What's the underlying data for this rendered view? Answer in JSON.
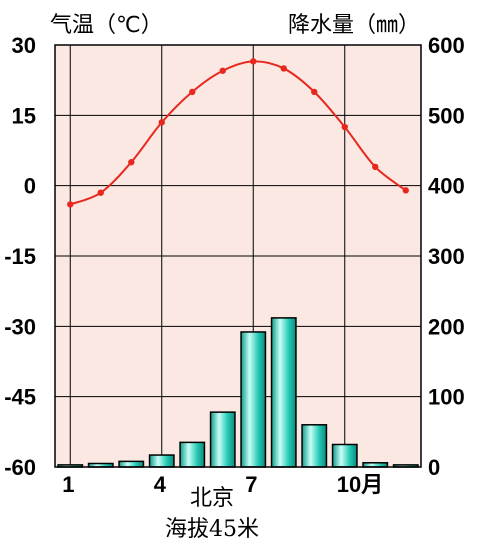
{
  "chart_data": {
    "type": "climate",
    "temp_axis_label": "气温（℃）",
    "precip_axis_label": "降水量（㎜）",
    "temp_ylim": [
      -60,
      30
    ],
    "precip_ylim": [
      0,
      600
    ],
    "temp_ticks": [
      "30",
      "15",
      "0",
      "-15",
      "-30",
      "-45",
      "-60"
    ],
    "precip_ticks": [
      "600",
      "500",
      "400",
      "300",
      "200",
      "100",
      "0"
    ],
    "month_ticks": [
      {
        "month": 1,
        "label": "1"
      },
      {
        "month": 4,
        "label": "4"
      },
      {
        "month": 7,
        "label": "7"
      },
      {
        "month": 10,
        "label": "10月"
      }
    ],
    "months": [
      1,
      2,
      3,
      4,
      5,
      6,
      7,
      8,
      9,
      10,
      11,
      12
    ],
    "temperature": [
      -4,
      -1.5,
      5,
      13.5,
      20,
      24.5,
      26.5,
      25,
      20,
      12.5,
      4,
      -1
    ],
    "precipitation": [
      3,
      5,
      8,
      17,
      35,
      78,
      192,
      212,
      60,
      32,
      6,
      3
    ],
    "colors": {
      "plot_bg": "#fbe8e2",
      "temp_line": "#e8281e",
      "bar_fill": "#26c9b6",
      "bar_highlight": "#c8fff6",
      "bar_stroke": "#000000"
    },
    "grid": true,
    "station_name": "北京",
    "elevation": "海拔45米"
  }
}
